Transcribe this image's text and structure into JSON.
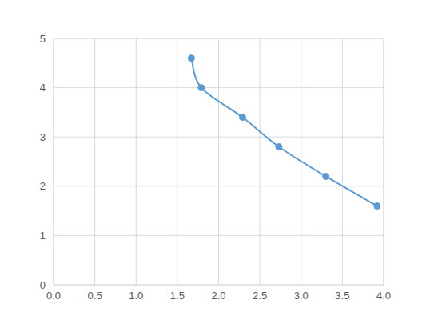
{
  "chart_data": {
    "type": "line",
    "x": [
      1.67,
      1.79,
      2.29,
      2.73,
      3.3,
      3.92
    ],
    "values": [
      4.6,
      4.0,
      3.4,
      2.8,
      2.2,
      1.6
    ],
    "color": "#5b9bd5",
    "marker": "circle",
    "line_style": "smooth",
    "xlim": [
      0,
      4
    ],
    "xticks": [
      {
        "value": 0,
        "label": "0.0"
      },
      {
        "value": 0.5,
        "label": "0.5"
      },
      {
        "value": 1,
        "label": "1.0"
      },
      {
        "value": 1.5,
        "label": "1.5"
      },
      {
        "value": 2,
        "label": "2.0"
      },
      {
        "value": 2.5,
        "label": "2.5"
      },
      {
        "value": 3,
        "label": "3.0"
      },
      {
        "value": 3.5,
        "label": "3.5"
      },
      {
        "value": 4,
        "label": "4.0"
      }
    ],
    "ylim": [
      0,
      5
    ],
    "yticks": [
      0,
      1,
      2,
      3,
      4,
      5
    ],
    "grid": true
  }
}
